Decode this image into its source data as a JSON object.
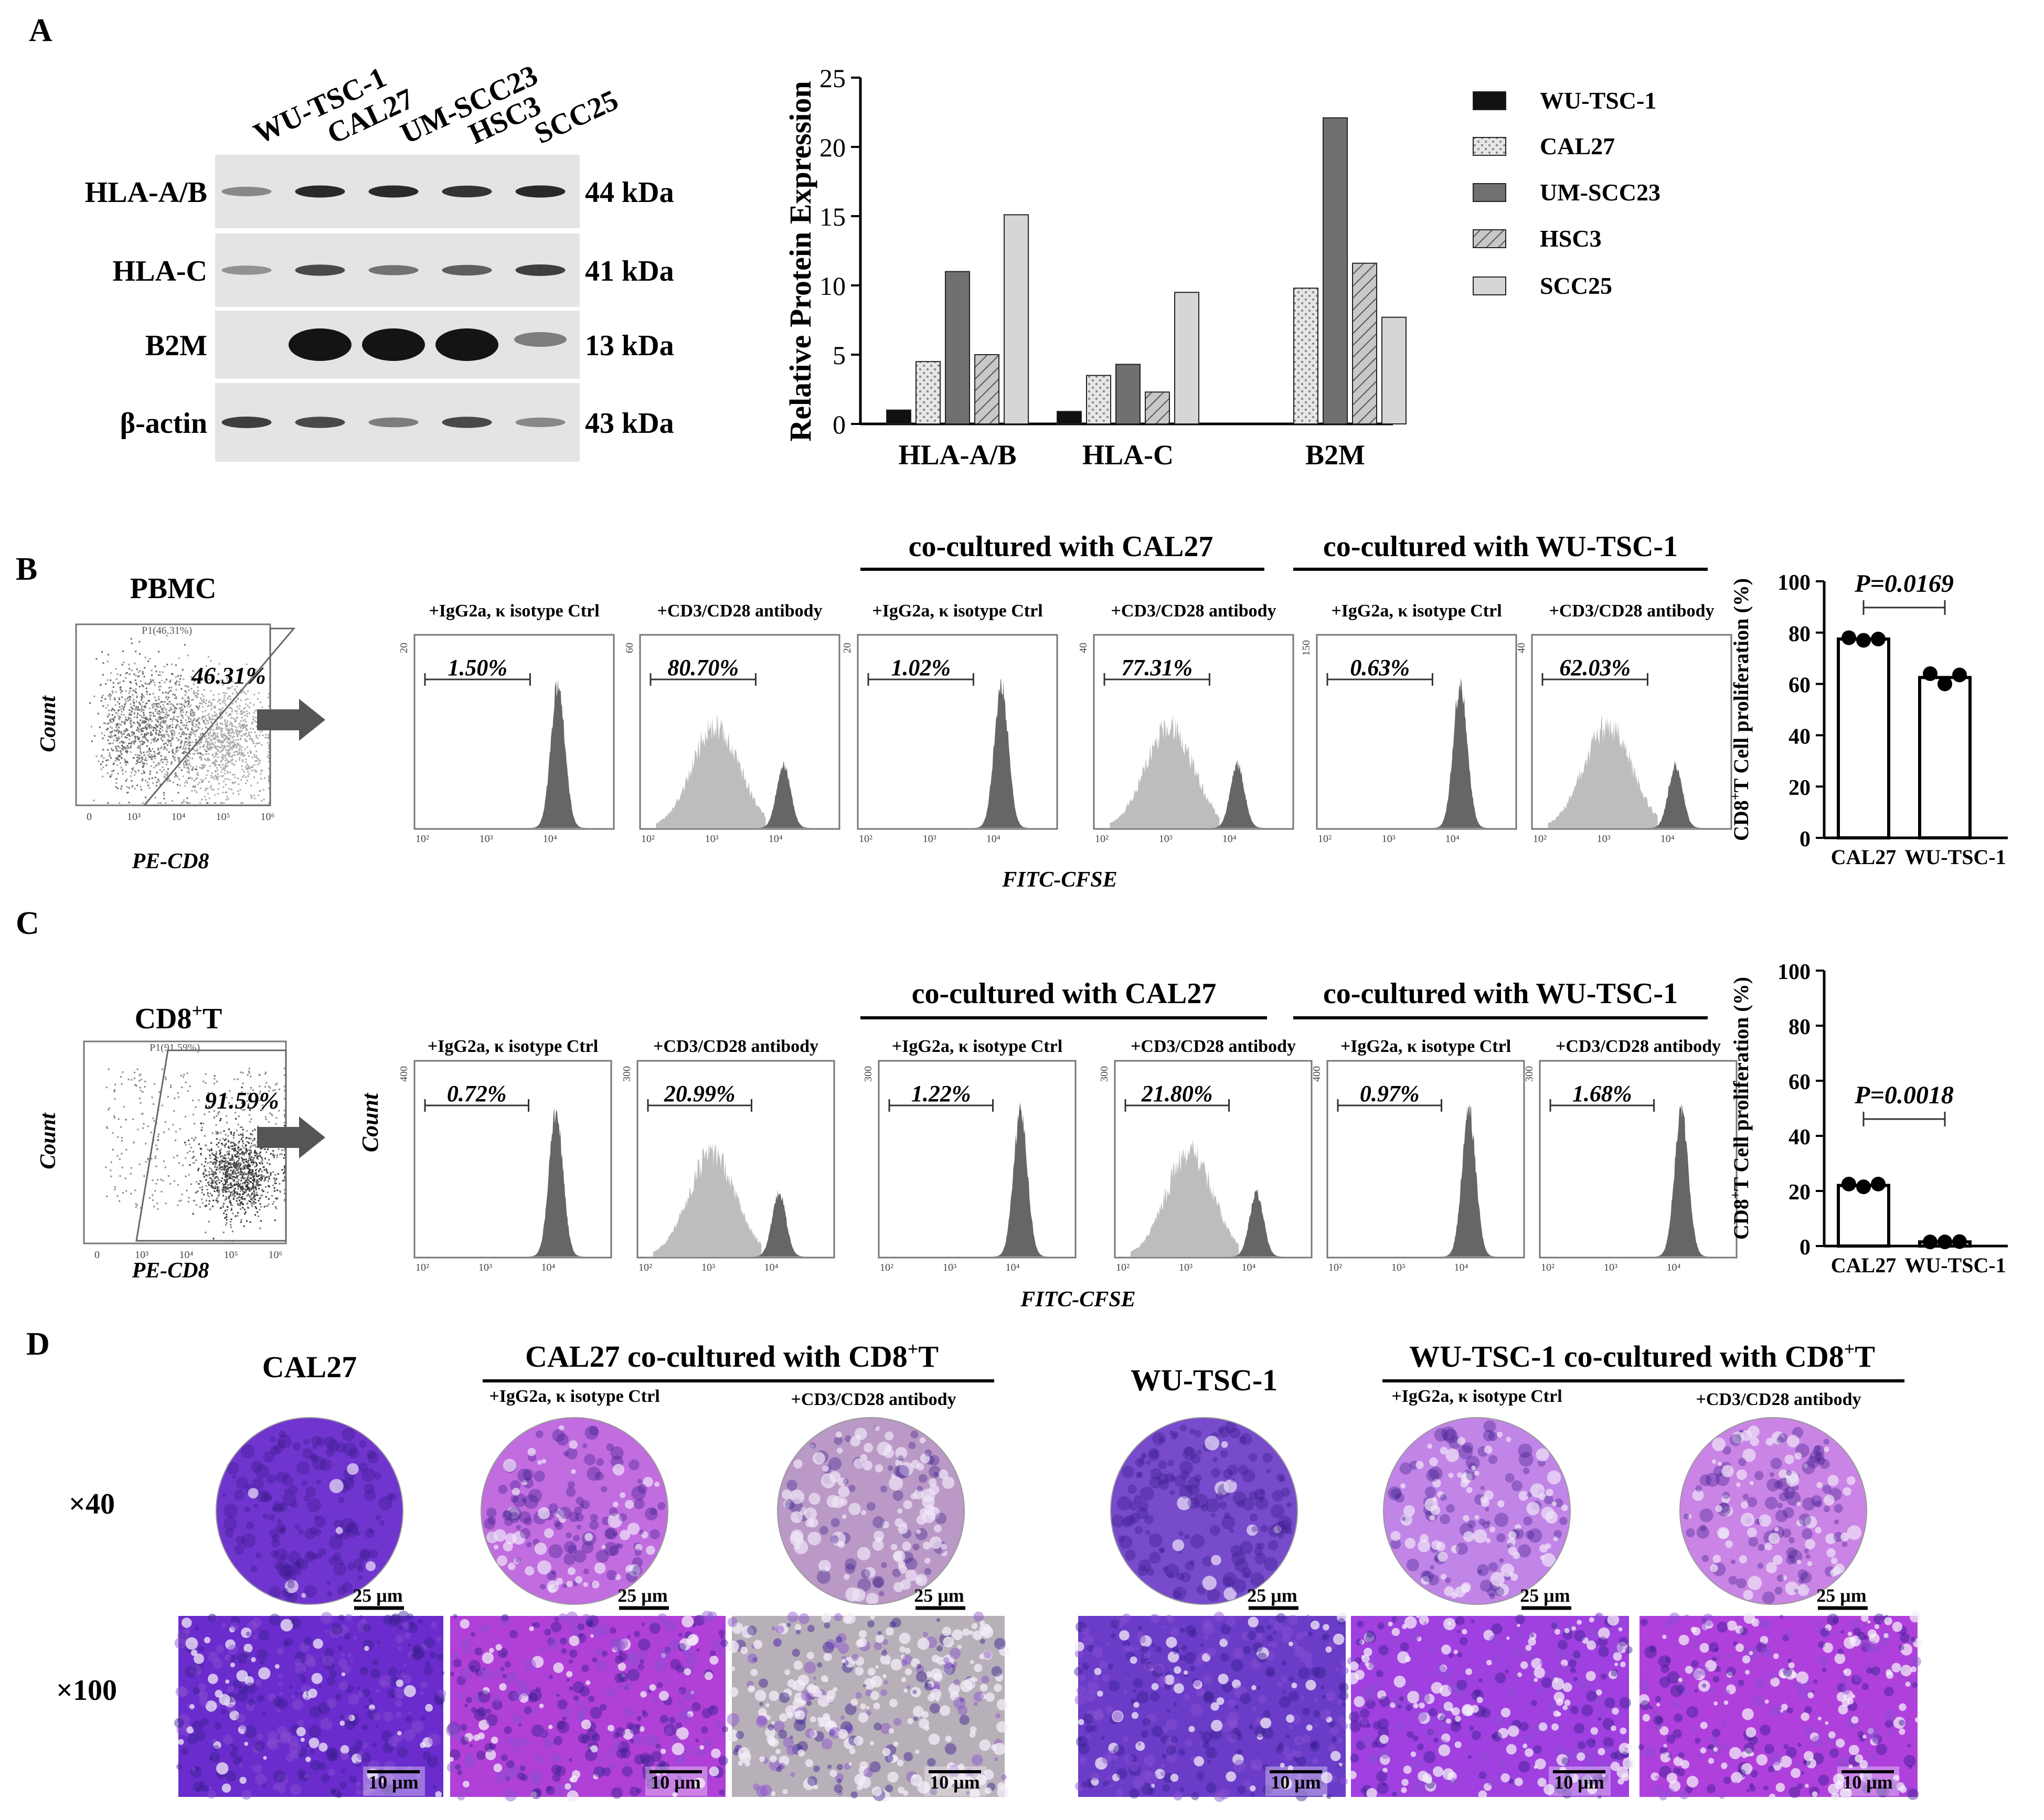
{
  "panel_a": {
    "letter": "A",
    "cell_lines": [
      "WU-TSC-1",
      "CAL27",
      "UM-SCC23",
      "HSC3",
      "SCC25"
    ],
    "blots": [
      {
        "label": "HLA-A/B",
        "size": "44 kDa",
        "intensity": [
          0.45,
          0.9,
          0.9,
          0.85,
          0.9
        ]
      },
      {
        "label": "HLA-C",
        "size": "41 kDa",
        "intensity": [
          0.4,
          0.75,
          0.55,
          0.65,
          0.8
        ]
      },
      {
        "label": "B2M",
        "size": "13 kDa",
        "intensity": [
          0,
          1,
          1,
          1,
          0.5
        ]
      },
      {
        "label": "β-actin",
        "size": "43 kDa",
        "intensity": [
          0.8,
          0.75,
          0.5,
          0.75,
          0.45
        ]
      }
    ]
  },
  "chart_data": [
    {
      "type": "bar",
      "title": "",
      "ylabel": "Relative Protein Expression",
      "ylim": [
        0,
        25
      ],
      "yticks": [
        "0",
        "5",
        "10",
        "15",
        "20",
        "25"
      ],
      "categories": [
        "HLA-A/B",
        "HLA-C",
        "B2M"
      ],
      "series": [
        {
          "name": "WU-TSC-1",
          "values": [
            1.0,
            0.9,
            0
          ],
          "color": "#111111"
        },
        {
          "name": "CAL27",
          "values": [
            4.5,
            3.5,
            9.8
          ],
          "color": "#dcdcdc"
        },
        {
          "name": "UM-SCC23",
          "values": [
            11.0,
            4.3,
            22.1
          ],
          "color": "#707070"
        },
        {
          "name": "HSC3",
          "values": [
            5.0,
            2.3,
            11.6
          ],
          "color": "#bbbbbb"
        },
        {
          "name": "SCC25",
          "values": [
            15.1,
            9.5,
            7.7
          ],
          "color": "#d6d6d6"
        }
      ],
      "legend_position": "right"
    },
    {
      "type": "bar",
      "title": "",
      "ylabel": "CD8+T Cell proliferation (%)",
      "ylim": [
        0,
        100
      ],
      "yticks": [
        "0",
        "20",
        "40",
        "60",
        "80",
        "100"
      ],
      "categories": [
        "CAL27",
        "WU-TSC-1"
      ],
      "values": [
        77.5,
        62.5
      ],
      "points": [
        [
          78,
          77,
          77.5
        ],
        [
          64,
          60,
          63.5
        ]
      ],
      "annotation": "P=0.0169"
    },
    {
      "type": "bar",
      "title": "",
      "ylabel": "CD8+T Cell proliferation (%)",
      "ylim": [
        0,
        100
      ],
      "yticks": [
        "0",
        "20",
        "40",
        "60",
        "80",
        "100"
      ],
      "categories": [
        "CAL27",
        "WU-TSC-1"
      ],
      "values": [
        22,
        1.5
      ],
      "points": [
        [
          22.5,
          21.5,
          22.5
        ],
        [
          1.5,
          1.5,
          1.6
        ]
      ],
      "annotation": "P=0.0018"
    }
  ],
  "panel_b": {
    "letter": "B",
    "scatter_title": "PBMC",
    "gate_label": "P1(46.31%)",
    "gate_percent": "46.31%",
    "x_axis": "PE-CD8",
    "y_axis": "Count",
    "group_headers": [
      "co-cultured with CAL27",
      "co-cultured with WU-TSC-1"
    ],
    "flow_x_axis": "FITC-CFSE",
    "histograms": [
      {
        "title": "+IgG2a, κ isotype Ctrl",
        "percent": "1.50%",
        "stim": false,
        "ymax": "20"
      },
      {
        "title": "+CD3/CD28 antibody",
        "percent": "80.70%",
        "stim": true,
        "ymax": "60"
      },
      {
        "title": "+IgG2a, κ isotype Ctrl",
        "percent": "1.02%",
        "stim": false,
        "ymax": "20"
      },
      {
        "title": "+CD3/CD28 antibody",
        "percent": "77.31%",
        "stim": true,
        "ymax": "40"
      },
      {
        "title": "+IgG2a, κ isotype Ctrl",
        "percent": "0.63%",
        "stim": false,
        "ymax": "150"
      },
      {
        "title": "+CD3/CD28 antibody",
        "percent": "62.03%",
        "stim": true,
        "ymax": "40"
      }
    ]
  },
  "panel_c": {
    "letter": "C",
    "scatter_title": "CD8+T",
    "gate_label": "P1(91.59%)",
    "gate_percent": "91.59%",
    "x_axis": "PE-CD8",
    "y_axis": "Count",
    "group_headers": [
      "co-cultured with CAL27",
      "co-cultured with WU-TSC-1"
    ],
    "flow_x_axis": "FITC-CFSE",
    "flow_y_axis": "Count",
    "histograms": [
      {
        "title": "+IgG2a, κ isotype Ctrl",
        "percent": "0.72%",
        "stim": false,
        "ymax": "400"
      },
      {
        "title": "+CD3/CD28 antibody",
        "percent": "20.99%",
        "stim": true,
        "ymax": "300"
      },
      {
        "title": "+IgG2a, κ isotype Ctrl",
        "percent": "1.22%",
        "stim": false,
        "ymax": "300"
      },
      {
        "title": "+CD3/CD28 antibody",
        "percent": "21.80%",
        "stim": true,
        "ymax": "300"
      },
      {
        "title": "+IgG2a, κ isotype Ctrl",
        "percent": "0.97%",
        "stim": false,
        "ymax": "400"
      },
      {
        "title": "+CD3/CD28 antibody",
        "percent": "1.68%",
        "stim": false,
        "ymax": "300"
      }
    ]
  },
  "axis_ticks": [
    "10²",
    "10³",
    "10⁴"
  ],
  "panel_d": {
    "letter": "D",
    "group_titles": [
      "CAL27",
      "CAL27 co-cultured with CD8+T",
      "WU-TSC-1",
      "WU-TSC-1 co-cultured with CD8+T"
    ],
    "sub_titles": [
      "+IgG2a, κ isotype Ctrl",
      "+CD3/CD28 antibody",
      "+IgG2a, κ isotype Ctrl",
      "+CD3/CD28 antibody"
    ],
    "row_labels": [
      "×40",
      "×100"
    ],
    "scale_40": "25 μm",
    "scale_100": "10 μm",
    "wells": [
      {
        "color": "#6a2ccc",
        "density": 0.95
      },
      {
        "color": "#b040d8",
        "density": 0.7
      },
      {
        "color": "#a050d0",
        "density": 0.35
      },
      {
        "color": "#6a3cc8",
        "density": 0.9
      },
      {
        "color": "#a040e0",
        "density": 0.55
      },
      {
        "color": "#b040dc",
        "density": 0.55
      }
    ]
  }
}
